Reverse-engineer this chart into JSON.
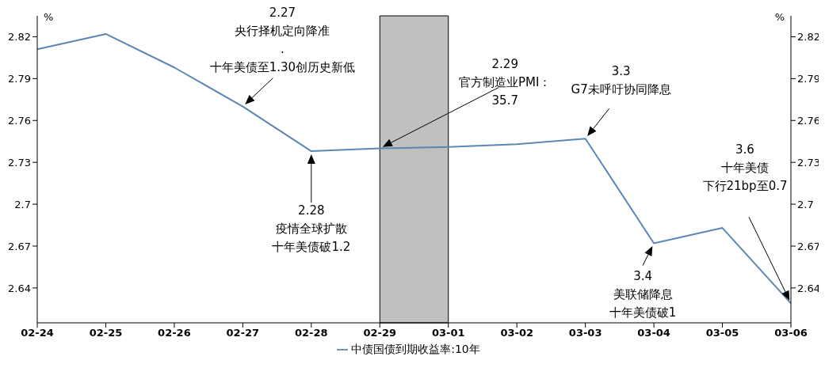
{
  "chart_data": {
    "type": "line",
    "ylabel": "%",
    "y2label": "%",
    "categories": [
      "02-24",
      "02-25",
      "02-26",
      "02-27",
      "02-28",
      "02-29",
      "03-01",
      "03-02",
      "03-03",
      "03-04",
      "03-05",
      "03-06"
    ],
    "series": [
      {
        "name": "中债国债到期收益率:10年",
        "color": "#5b87b4",
        "values": [
          2.811,
          2.822,
          2.798,
          2.77,
          2.738,
          2.74,
          2.741,
          2.743,
          2.747,
          2.672,
          2.683,
          2.629
        ]
      }
    ],
    "ylim": [
      2.615,
      2.835
    ],
    "yticks": [
      2.64,
      2.67,
      2.7,
      2.73,
      2.76,
      2.79,
      2.82
    ],
    "y2lim": [
      2.615,
      2.835
    ],
    "y2ticks": [
      2.64,
      2.67,
      2.7,
      2.73,
      2.76,
      2.79,
      2.82
    ],
    "bands": [
      {
        "axis": "x",
        "from": "02-29",
        "to": "03-01",
        "color": "#c0c0c0"
      }
    ],
    "annotations": [
      "2.27",
      "央行择机定向降准",
      ".",
      "十年美债至1.30创历史新低",
      "2.28",
      "疫情全球扩散",
      "十年美债破1.2",
      "2.29",
      "官方制造业PMI：",
      "35.7",
      "3.3",
      "G7未呼吁协同降息",
      "3.4",
      "美联储降息",
      "十年美债破1",
      "3.6",
      "十年美债",
      "下行21bp至0.7"
    ],
    "legend": "bottom",
    "grid": false,
    "marker": "none",
    "line_style": "solid"
  }
}
